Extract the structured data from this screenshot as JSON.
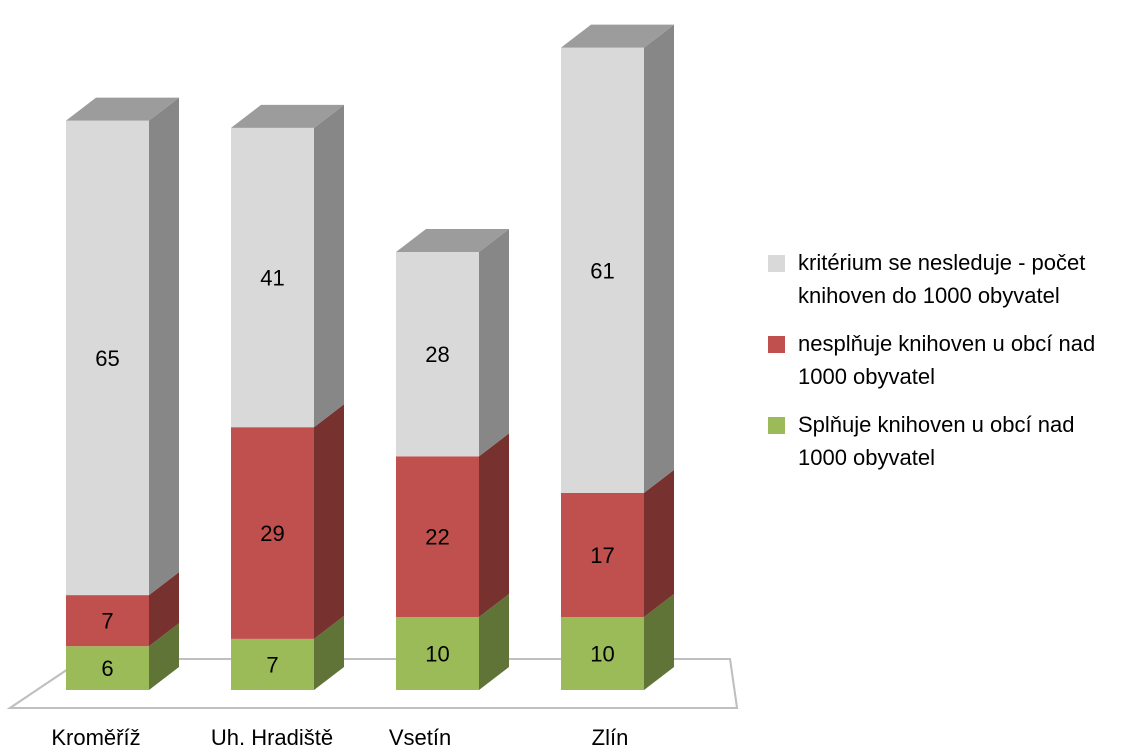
{
  "chart_data": {
    "type": "bar",
    "stacked": true,
    "three_d": true,
    "categories": [
      "Kroměříž",
      "Uh. Hradiště",
      "Vsetín",
      "Zlín"
    ],
    "series": [
      {
        "name": "Splňuje knihoven u obcí nad 1000 obyvatel",
        "values": [
          6,
          7,
          10,
          10
        ],
        "color": "#9BBB59"
      },
      {
        "name": "nesplňuje knihoven u obcí nad 1000 obyvatel",
        "values": [
          7,
          29,
          22,
          17
        ],
        "color": "#C0504D"
      },
      {
        "name": "kritérium se nesleduje - počet knihoven do 1000 obyvatel",
        "values": [
          65,
          41,
          28,
          61
        ],
        "color": "#D9D9D9"
      }
    ],
    "legend_order": [
      2,
      1,
      0
    ],
    "legend_position": "right",
    "data_labels": true,
    "grid": false,
    "title": "",
    "xlabel": "",
    "ylabel": ""
  }
}
